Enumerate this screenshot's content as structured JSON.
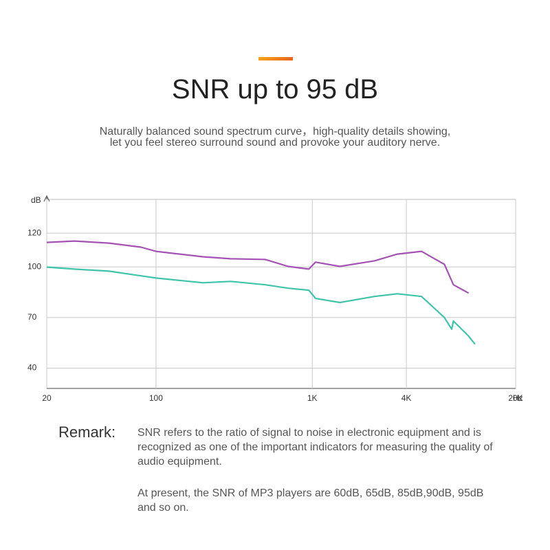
{
  "header": {
    "title": "SNR up to 95 dB",
    "subtitle": [
      "Naturally balanced sound spectrum curve，high-quality details showing,",
      "let you feel stereo surround sound and provoke your auditory nerve."
    ]
  },
  "chart_data": {
    "type": "line",
    "x_label": "Hz",
    "y_label": "dB",
    "x_scale": "log",
    "grid": true,
    "xlim": [
      20,
      20000
    ],
    "xticks": [
      20,
      100,
      {
        "value": 1000,
        "label": "1K"
      },
      {
        "value": 4000,
        "label": "4K"
      },
      {
        "value": 20000,
        "label": "20K"
      }
    ],
    "ylim": [
      28,
      140
    ],
    "yticks": [
      40,
      70,
      100,
      120
    ],
    "series": [
      {
        "color": "#a452b4",
        "x": [
          20,
          30,
          50,
          80,
          100,
          200,
          300,
          500,
          700,
          950,
          1050,
          1500,
          2500,
          3500,
          5000,
          7000,
          8000,
          10000
        ],
        "values": [
          114.5,
          115.3,
          114.1,
          111.7,
          109.2,
          106.0,
          104.8,
          104.4,
          100.3,
          98.7,
          102.8,
          100.3,
          103.6,
          107.6,
          109.2,
          101.5,
          89.4,
          84.5
        ]
      },
      {
        "color": "#3fc4aa",
        "x": [
          20,
          30,
          50,
          80,
          100,
          200,
          300,
          500,
          700,
          950,
          1050,
          1500,
          2500,
          3500,
          5000,
          7000,
          7800,
          8000,
          10000,
          11000
        ],
        "values": [
          99.9,
          98.7,
          97.5,
          94.7,
          93.4,
          90.6,
          91.4,
          89.4,
          87.4,
          86.2,
          81.3,
          78.9,
          82.5,
          84.1,
          82.5,
          70.0,
          63.1,
          67.9,
          59.0,
          54.2
        ]
      }
    ]
  },
  "remark": {
    "label": "Remark:",
    "paragraphs": [
      "SNR refers to the ratio of signal to noise in electronic equipment and is recognized as one of the important indicators for measuring the quality of audio equipment.",
      "At present, the SNR of MP3 players are 60dB, 65dB, 85dB,90dB, 95dB and so on."
    ]
  }
}
